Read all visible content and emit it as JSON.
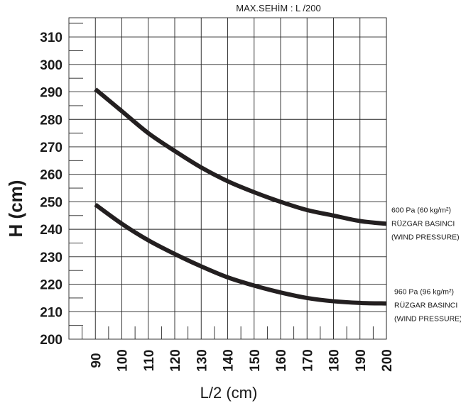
{
  "chart_data": {
    "type": "line",
    "annotation_top": "MAX.SEHİM :  L /200",
    "xlabel": "L/2  (cm)",
    "ylabel": "H (cm)",
    "x_ticks": [
      90,
      100,
      110,
      120,
      130,
      140,
      150,
      160,
      170,
      180,
      190,
      200
    ],
    "y_ticks": [
      200,
      210,
      220,
      230,
      240,
      250,
      260,
      270,
      280,
      290,
      300,
      310
    ],
    "xlim": [
      80,
      200
    ],
    "ylim": [
      200,
      317
    ],
    "grid": true,
    "line_color": "#231f20",
    "series": [
      {
        "label_lines": [
          "600 Pa (60 kg/m²)",
          "RÜZGAR BASINCI",
          "(WIND PRESSURE)"
        ],
        "x": [
          90,
          100,
          110,
          120,
          130,
          140,
          150,
          160,
          170,
          180,
          190,
          200
        ],
        "y": [
          291,
          283,
          275,
          268.5,
          262.5,
          257.5,
          253.5,
          250,
          247,
          245,
          243,
          242
        ]
      },
      {
        "label_lines": [
          "960 Pa (96 kg/m²)",
          "RÜZGAR BASINCI",
          "(WIND PRESSURE)"
        ],
        "x": [
          90,
          100,
          110,
          120,
          130,
          140,
          150,
          160,
          170,
          180,
          190,
          200
        ],
        "y": [
          249,
          242,
          236,
          231,
          226.5,
          222.5,
          219.5,
          217,
          215,
          213.8,
          213.2,
          213
        ]
      }
    ]
  }
}
